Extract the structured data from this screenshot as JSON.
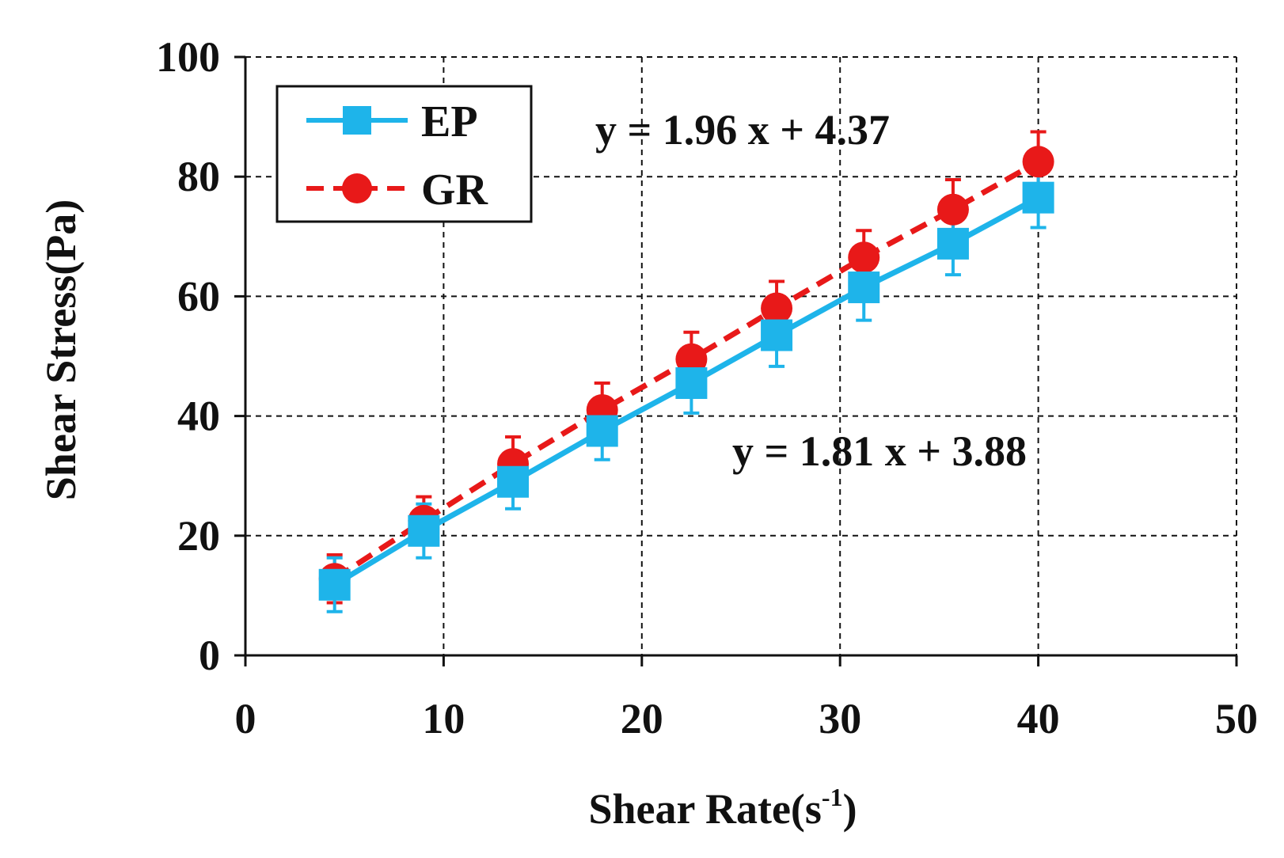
{
  "chart_data": {
    "type": "line",
    "xlabel": "Shear Rate(s",
    "xlabel_sup": "-1",
    "xlabel_end": ")",
    "ylabel": "Shear Stress(Pa)",
    "xlim": [
      0,
      50
    ],
    "ylim": [
      0,
      100
    ],
    "xticks": [
      "0",
      "10",
      "20",
      "30",
      "40",
      "50"
    ],
    "yticks": [
      "0",
      "20",
      "40",
      "60",
      "80",
      "100"
    ],
    "grid": true,
    "legend_position": "top-left",
    "series": [
      {
        "name": "EP",
        "color": "#1EB4EA",
        "marker": "square",
        "line_style": "solid",
        "x": [
          4.5,
          9.0,
          13.5,
          18.0,
          22.5,
          26.8,
          31.2,
          35.7,
          40.0
        ],
        "y": [
          11.8,
          20.8,
          29.0,
          37.5,
          45.5,
          53.5,
          61.5,
          68.8,
          76.5
        ],
        "err": [
          4.5,
          4.5,
          4.5,
          4.8,
          5.0,
          5.2,
          5.5,
          5.2,
          5.0
        ]
      },
      {
        "name": "GR",
        "color": "#E81919",
        "marker": "circle",
        "line_style": "dashed",
        "x": [
          4.5,
          9.0,
          13.5,
          18.0,
          22.5,
          26.8,
          31.2,
          35.7,
          40.0
        ],
        "y": [
          12.8,
          22.5,
          32.0,
          41.0,
          49.5,
          58.0,
          66.5,
          74.5,
          82.5
        ],
        "err": [
          4.0,
          4.0,
          4.5,
          4.5,
          4.5,
          4.5,
          4.5,
          5.0,
          5.0
        ]
      }
    ],
    "annotations": [
      {
        "text": "y = 1.96 x + 4.37",
        "series": "GR"
      },
      {
        "text": "y = 1.81 x + 3.88",
        "series": "EP"
      }
    ]
  }
}
